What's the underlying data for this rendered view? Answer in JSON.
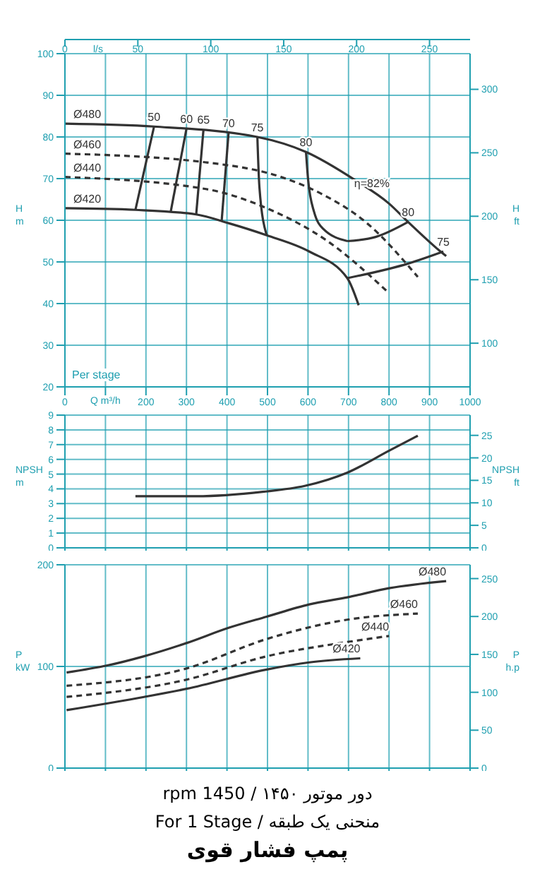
{
  "chart_data": [
    {
      "type": "line",
      "xlabel": "Q m³/h",
      "ylabel": "H m",
      "y2label": "H ft",
      "x2label": "l/s",
      "xlim": [
        0,
        1000
      ],
      "xticks": [
        0,
        {
          "value": 100,
          "label": null
        },
        200,
        300,
        400,
        500,
        600,
        700,
        800,
        900,
        1000
      ],
      "x2lim": [
        0,
        277.8
      ],
      "x2ticks": [
        0,
        50,
        100,
        150,
        200,
        250
      ],
      "ylim": [
        20,
        100
      ],
      "yticks": [
        20,
        30,
        40,
        50,
        60,
        70,
        80,
        90,
        100
      ],
      "y2lim": [
        65.6,
        328.1
      ],
      "y2ticks": [
        100,
        150,
        200,
        250,
        300
      ],
      "grid": true,
      "marker": "none",
      "annotations": [
        {
          "text": "η=82%",
          "x": 700,
          "y": 69
        },
        "Per stage"
      ],
      "series": [
        {
          "name": "Ø480",
          "color": "#333333",
          "line_style": "solid",
          "x": [
            0,
            220,
            475,
            595,
            717,
            800,
            847,
            927,
            941
          ],
          "values": [
            83.2,
            82.5,
            80,
            76.4,
            69.6,
            64,
            59.6,
            52.5,
            51.4
          ]
        },
        {
          "name": "Ø460",
          "color": "#333333",
          "line_style": "dashed",
          "x": [
            0,
            348,
            533,
            638,
            742,
            871
          ],
          "values": [
            76,
            73.9,
            70.4,
            66.1,
            59.6,
            46.4
          ]
        },
        {
          "name": "Ø440",
          "color": "#333333",
          "line_style": "dashed",
          "x": [
            0,
            348,
            498,
            648,
            800
          ],
          "values": [
            70.4,
            67.5,
            62.9,
            55,
            42.5
          ]
        },
        {
          "name": "Ø420",
          "color": "#333333",
          "line_style": "solid",
          "x": [
            0,
            174,
            324,
            404,
            498,
            603,
            697,
            725
          ],
          "values": [
            62.9,
            62.5,
            61.4,
            59.3,
            56.4,
            52.5,
            46.1,
            39.6
          ]
        },
        {
          "name": "50",
          "color": "#333333",
          "line_style": "solid",
          "x": [
            220,
            174
          ],
          "values": [
            82.5,
            62.5
          ]
        },
        {
          "name": "60",
          "color": "#333333",
          "line_style": "solid",
          "x": [
            300,
            261
          ],
          "values": [
            82,
            62
          ]
        },
        {
          "name": "65",
          "color": "#333333",
          "line_style": "solid",
          "x": [
            342,
            324
          ],
          "values": [
            81.8,
            61.4
          ]
        },
        {
          "name": "70",
          "color": "#333333",
          "line_style": "solid",
          "x": [
            404,
            387
          ],
          "values": [
            81.1,
            60
          ]
        },
        {
          "name": "75",
          "color": "#333333",
          "line_style": "solid",
          "x": [
            475,
            480,
            498
          ],
          "values": [
            80,
            68,
            56.4
          ]
        },
        {
          "name": "80",
          "color": "#333333",
          "line_style": "solid",
          "x": [
            595,
            600,
            615,
            638,
            697
          ],
          "values": [
            76.4,
            70,
            62,
            57.9,
            55
          ]
        },
        {
          "name": "80",
          "color": "#333333",
          "line_style": "solid",
          "x": [
            847,
            767,
            697
          ],
          "values": [
            59.6,
            56,
            55
          ]
        },
        {
          "name": "75",
          "color": "#333333",
          "line_style": "solid",
          "x": [
            934,
            847,
            697
          ],
          "values": [
            52.5,
            49.6,
            46.1
          ]
        }
      ]
    },
    {
      "type": "line",
      "ylabel": "NPSH m",
      "y2label": "NPSH ft",
      "xlim": [
        0,
        1000
      ],
      "xticks": [
        0,
        100,
        200,
        300,
        400,
        500,
        600,
        700,
        800,
        900,
        1000
      ],
      "ylim": [
        0,
        9
      ],
      "yticks": [
        0,
        1,
        2,
        3,
        4,
        5,
        6,
        7,
        8,
        9
      ],
      "y2lim": [
        0,
        29.5
      ],
      "y2ticks": [
        0,
        5,
        10,
        15,
        20,
        25
      ],
      "grid": true,
      "marker": "none",
      "tick_labels": "y",
      "series": [
        {
          "color": "#333333",
          "line_style": "solid",
          "x": [
            174,
            324,
            488,
            592,
            697,
            801,
            871
          ],
          "values": [
            3.5,
            3.5,
            3.8,
            4.2,
            5.1,
            6.6,
            7.6
          ]
        }
      ]
    },
    {
      "type": "line",
      "ylabel": "P kW",
      "y2label": "P h.p",
      "xlim": [
        0,
        1000
      ],
      "xticks": [
        0,
        100,
        200,
        300,
        400,
        500,
        600,
        700,
        800,
        900,
        1000
      ],
      "ylim": [
        0,
        200
      ],
      "yticks": [
        0,
        100,
        200
      ],
      "y2lim": [
        0,
        268.2
      ],
      "y2ticks": [
        0,
        50,
        100,
        150,
        200,
        250
      ],
      "grid": true,
      "marker": "none",
      "tick_labels": "y",
      "annotations": [
        "دور موتور ۱۴۵۰ / 1450 rpm",
        "منحنی یک طبقه / For 1 Stage",
        "پمپ فشار قوی"
      ],
      "series": [
        {
          "name": "Ø480",
          "color": "#333333",
          "line_style": "solid",
          "x": [
            4,
            105,
            195,
            300,
            404,
            498,
            603,
            697,
            800,
            941
          ],
          "values": [
            94,
            101,
            110,
            123,
            138,
            149,
            161,
            168,
            177,
            184
          ]
        },
        {
          "name": "Ø460",
          "color": "#333333",
          "line_style": "dashed",
          "x": [
            4,
            300,
            498,
            697,
            871
          ],
          "values": [
            81,
            98,
            127,
            146,
            152
          ]
        },
        {
          "name": "Ø440",
          "color": "#333333",
          "line_style": "dashed",
          "x": [
            4,
            300,
            498,
            697,
            800
          ],
          "values": [
            70,
            87,
            110,
            124,
            130
          ]
        },
        {
          "name": "Ø420",
          "color": "#333333",
          "line_style": "solid",
          "x": [
            4,
            195,
            300,
            498,
            603,
            729
          ],
          "values": [
            57,
            70,
            78,
            97,
            104,
            108
          ]
        }
      ]
    }
  ]
}
